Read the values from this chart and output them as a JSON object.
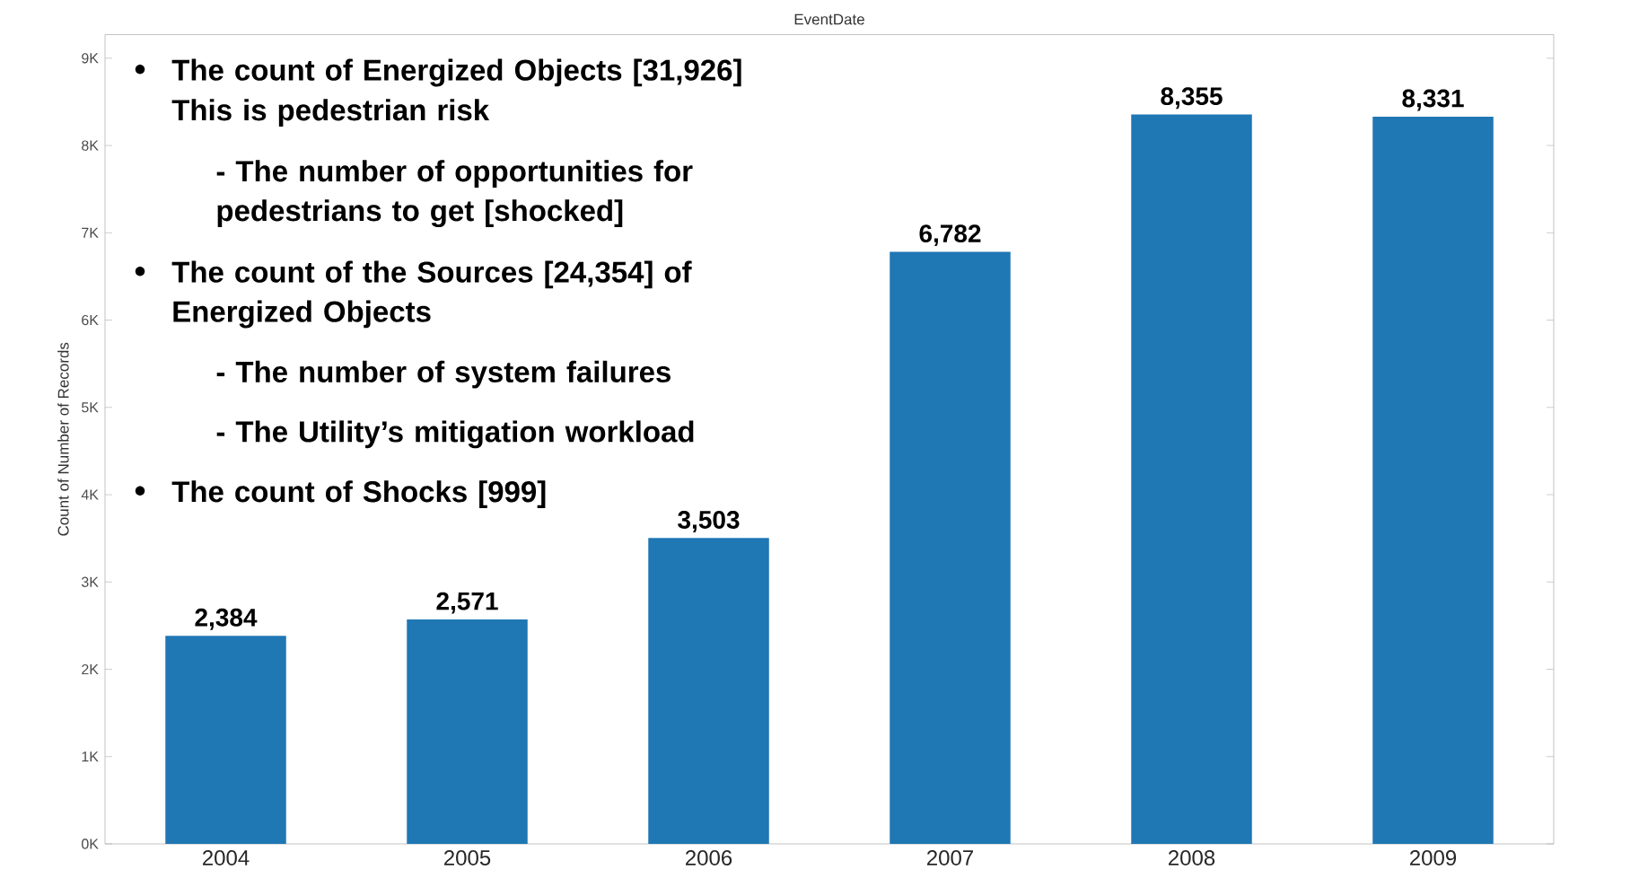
{
  "chart_data": {
    "type": "bar",
    "xlabel": "EventDate",
    "ylabel": "Count of Number of Records",
    "categories": [
      "2004",
      "2005",
      "2006",
      "2007",
      "2008",
      "2009"
    ],
    "values": [
      2384,
      2571,
      3503,
      6782,
      8355,
      8331
    ],
    "value_labels": [
      "2,384",
      "2,571",
      "3,503",
      "6,782",
      "8,355",
      "8,331"
    ],
    "color": "#1f77b4",
    "ylim": [
      0,
      9270
    ],
    "yticks": [
      {
        "value": 0,
        "label": "0K"
      },
      {
        "value": 1000,
        "label": "1K"
      },
      {
        "value": 2000,
        "label": "2K"
      },
      {
        "value": 3000,
        "label": "3K"
      },
      {
        "value": 4000,
        "label": "4K"
      },
      {
        "value": 5000,
        "label": "5K"
      },
      {
        "value": 6000,
        "label": "6K"
      },
      {
        "value": 7000,
        "label": "7K"
      },
      {
        "value": 8000,
        "label": "8K"
      },
      {
        "value": 9000,
        "label": "9K"
      }
    ],
    "grid": false,
    "annotations": [
      "The count of Energized Objects [31,926]",
      "This is pedestrian risk",
      "- The number of opportunities for pedestrians to get [shocked]",
      "The count of the Sources [24,354] of Energized Objects",
      "- The number of system failures",
      "- The Utility’s mitigation workload",
      "The count of Shocks [999]"
    ]
  }
}
